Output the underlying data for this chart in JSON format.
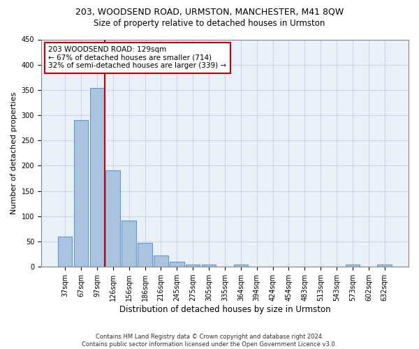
{
  "title1": "203, WOODSEND ROAD, URMSTON, MANCHESTER, M41 8QW",
  "title2": "Size of property relative to detached houses in Urmston",
  "xlabel": "Distribution of detached houses by size in Urmston",
  "ylabel": "Number of detached properties",
  "footer": "Contains HM Land Registry data © Crown copyright and database right 2024.\nContains public sector information licensed under the Open Government Licence v3.0.",
  "categories": [
    "37sqm",
    "67sqm",
    "97sqm",
    "126sqm",
    "156sqm",
    "186sqm",
    "216sqm",
    "245sqm",
    "275sqm",
    "305sqm",
    "335sqm",
    "364sqm",
    "394sqm",
    "424sqm",
    "454sqm",
    "483sqm",
    "513sqm",
    "543sqm",
    "573sqm",
    "602sqm",
    "632sqm"
  ],
  "values": [
    60,
    291,
    354,
    191,
    91,
    47,
    22,
    10,
    5,
    5,
    0,
    5,
    0,
    0,
    0,
    0,
    0,
    0,
    4,
    0,
    4
  ],
  "bar_color": "#aac4e0",
  "bar_edge_color": "#5b9bd5",
  "bar_edge_width": 0.8,
  "vline_color": "#cc0000",
  "annotation_text": "203 WOODSEND ROAD: 129sqm\n← 67% of detached houses are smaller (714)\n32% of semi-detached houses are larger (339) →",
  "annotation_box_color": "#ffffff",
  "annotation_box_edge_color": "#cc0000",
  "annotation_fontsize": 7.5,
  "ylim": [
    0,
    450
  ],
  "yticks": [
    0,
    50,
    100,
    150,
    200,
    250,
    300,
    350,
    400,
    450
  ],
  "grid_color": "#c8d8e8",
  "background_color": "#eaf0f8",
  "title1_fontsize": 9,
  "title2_fontsize": 8.5,
  "xlabel_fontsize": 8.5,
  "ylabel_fontsize": 8,
  "tick_fontsize": 7
}
